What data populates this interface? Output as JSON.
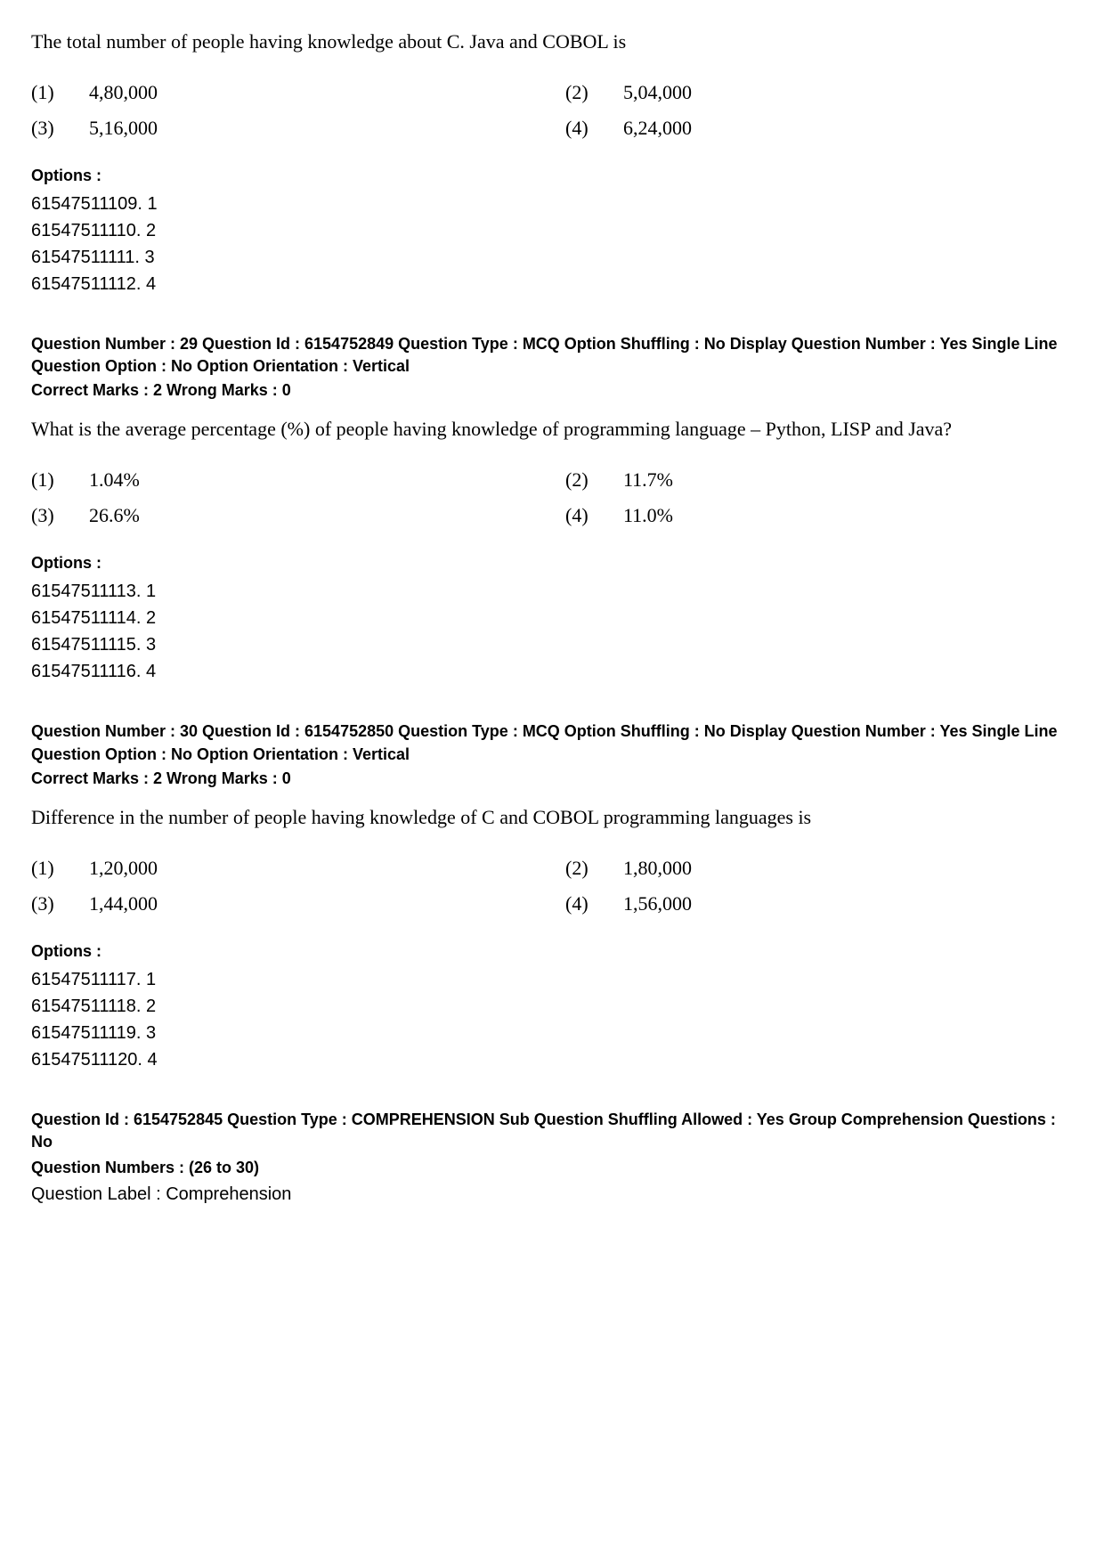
{
  "q28": {
    "question_text": "The total number of people having knowledge about C. Java and COBOL is",
    "choices": [
      {
        "num": "(1)",
        "val": "4,80,000"
      },
      {
        "num": "(2)",
        "val": "5,04,000"
      },
      {
        "num": "(3)",
        "val": "5,16,000"
      },
      {
        "num": "(4)",
        "val": "6,24,000"
      }
    ],
    "options_header": "Options :",
    "options": [
      "61547511109. 1",
      "61547511110. 2",
      "61547511111. 3",
      "61547511112. 4"
    ]
  },
  "q29": {
    "meta_line1": "Question Number : 29  Question Id : 6154752849  Question Type : MCQ  Option Shuffling : No  Display Question Number : Yes  Single Line Question Option : No  Option Orientation : Vertical",
    "marks": "Correct Marks : 2  Wrong Marks : 0",
    "question_text": "What is the average percentage (%) of people having knowledge of programming language – Python, LISP and Java?",
    "choices": [
      {
        "num": "(1)",
        "val": "1.04%"
      },
      {
        "num": "(2)",
        "val": "11.7%"
      },
      {
        "num": "(3)",
        "val": "26.6%"
      },
      {
        "num": "(4)",
        "val": "11.0%"
      }
    ],
    "options_header": "Options :",
    "options": [
      "61547511113. 1",
      "61547511114. 2",
      "61547511115. 3",
      "61547511116. 4"
    ]
  },
  "q30": {
    "meta_line1": "Question Number : 30  Question Id : 6154752850  Question Type : MCQ  Option Shuffling : No  Display Question Number : Yes  Single Line Question Option : No  Option Orientation : Vertical",
    "marks": "Correct Marks : 2  Wrong Marks : 0",
    "question_text": "Difference in the number of people having knowledge of C and COBOL programming languages is",
    "choices": [
      {
        "num": "(1)",
        "val": "1,20,000"
      },
      {
        "num": "(2)",
        "val": "1,80,000"
      },
      {
        "num": "(3)",
        "val": "1,44,000"
      },
      {
        "num": "(4)",
        "val": "1,56,000"
      }
    ],
    "options_header": "Options :",
    "options": [
      "61547511117. 1",
      "61547511118. 2",
      "61547511119. 3",
      "61547511120. 4"
    ]
  },
  "comprehension": {
    "meta": "Question Id : 6154752845  Question Type : COMPREHENSION  Sub Question Shuffling Allowed : Yes  Group Comprehension Questions : No",
    "numbers": "Question Numbers : (26 to 30)",
    "label": "Question Label : Comprehension"
  }
}
